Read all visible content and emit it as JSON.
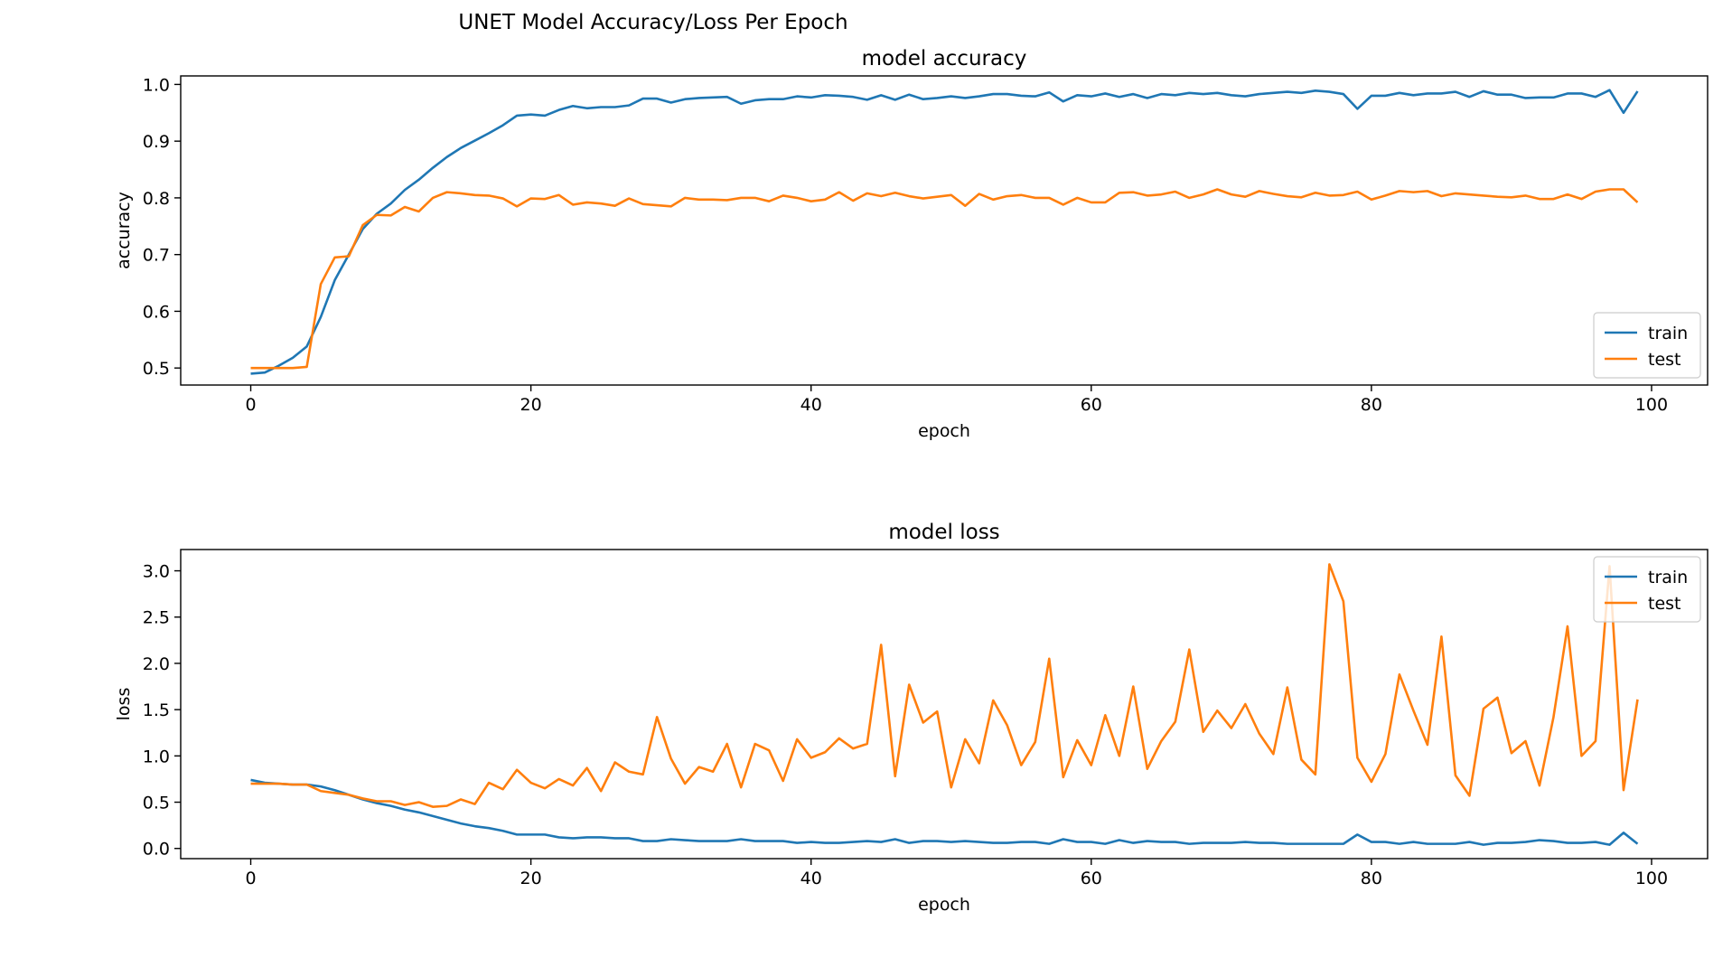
{
  "figure": {
    "suptitle": "UNET Model Accuracy/Loss Per Epoch"
  },
  "colors": {
    "train": "#1f77b4",
    "test": "#ff7f0e",
    "axes": "#000000",
    "background": "#ffffff"
  },
  "chart_data": [
    {
      "type": "line",
      "title": "model accuracy",
      "xlabel": "epoch",
      "ylabel": "accuracy",
      "xlim": [
        -5,
        104
      ],
      "ylim": [
        0.47,
        1.015
      ],
      "xticks": [
        0,
        20,
        40,
        60,
        80,
        100
      ],
      "yticks": [
        0.5,
        0.6,
        0.7,
        0.8,
        0.9,
        1.0
      ],
      "ytick_decimals": 1,
      "grid": false,
      "legend_position": "lower right",
      "x": [
        0,
        1,
        2,
        3,
        4,
        5,
        6,
        7,
        8,
        9,
        10,
        11,
        12,
        13,
        14,
        15,
        16,
        17,
        18,
        19,
        20,
        21,
        22,
        23,
        24,
        25,
        26,
        27,
        28,
        29,
        30,
        31,
        32,
        33,
        34,
        35,
        36,
        37,
        38,
        39,
        40,
        41,
        42,
        43,
        44,
        45,
        46,
        47,
        48,
        49,
        50,
        51,
        52,
        53,
        54,
        55,
        56,
        57,
        58,
        59,
        60,
        61,
        62,
        63,
        64,
        65,
        66,
        67,
        68,
        69,
        70,
        71,
        72,
        73,
        74,
        75,
        76,
        77,
        78,
        79,
        80,
        81,
        82,
        83,
        84,
        85,
        86,
        87,
        88,
        89,
        90,
        91,
        92,
        93,
        94,
        95,
        96,
        97,
        98,
        99
      ],
      "series": [
        {
          "name": "train",
          "color_key": "train",
          "values": [
            0.49,
            0.492,
            0.504,
            0.518,
            0.538,
            0.59,
            0.655,
            0.7,
            0.745,
            0.772,
            0.79,
            0.814,
            0.832,
            0.853,
            0.872,
            0.888,
            0.901,
            0.914,
            0.928,
            0.945,
            0.947,
            0.945,
            0.955,
            0.962,
            0.958,
            0.96,
            0.96,
            0.963,
            0.975,
            0.975,
            0.968,
            0.974,
            0.976,
            0.977,
            0.978,
            0.966,
            0.972,
            0.974,
            0.974,
            0.979,
            0.977,
            0.981,
            0.98,
            0.978,
            0.973,
            0.981,
            0.973,
            0.982,
            0.974,
            0.976,
            0.979,
            0.976,
            0.979,
            0.983,
            0.983,
            0.98,
            0.979,
            0.986,
            0.97,
            0.981,
            0.979,
            0.984,
            0.978,
            0.983,
            0.976,
            0.983,
            0.981,
            0.985,
            0.983,
            0.985,
            0.981,
            0.979,
            0.983,
            0.985,
            0.987,
            0.985,
            0.989,
            0.987,
            0.983,
            0.957,
            0.98,
            0.98,
            0.985,
            0.981,
            0.984,
            0.984,
            0.987,
            0.978,
            0.988,
            0.982,
            0.982,
            0.976,
            0.977,
            0.977,
            0.984,
            0.984,
            0.978,
            0.99,
            0.95,
            0.988
          ]
        },
        {
          "name": "test",
          "color_key": "test",
          "values": [
            0.5,
            0.5,
            0.5,
            0.5,
            0.502,
            0.648,
            0.695,
            0.697,
            0.752,
            0.77,
            0.769,
            0.784,
            0.776,
            0.8,
            0.81,
            0.808,
            0.805,
            0.804,
            0.799,
            0.785,
            0.799,
            0.798,
            0.805,
            0.788,
            0.792,
            0.79,
            0.786,
            0.799,
            0.789,
            0.787,
            0.785,
            0.8,
            0.797,
            0.797,
            0.796,
            0.8,
            0.8,
            0.794,
            0.804,
            0.8,
            0.794,
            0.797,
            0.81,
            0.795,
            0.808,
            0.803,
            0.809,
            0.803,
            0.799,
            0.802,
            0.805,
            0.786,
            0.807,
            0.797,
            0.803,
            0.805,
            0.8,
            0.8,
            0.788,
            0.8,
            0.792,
            0.792,
            0.809,
            0.81,
            0.804,
            0.806,
            0.811,
            0.8,
            0.806,
            0.815,
            0.806,
            0.802,
            0.812,
            0.807,
            0.803,
            0.801,
            0.809,
            0.804,
            0.805,
            0.811,
            0.797,
            0.804,
            0.812,
            0.81,
            0.812,
            0.803,
            0.808,
            0.806,
            0.804,
            0.802,
            0.801,
            0.804,
            0.798,
            0.798,
            0.806,
            0.798,
            0.811,
            0.815,
            0.815,
            0.792
          ]
        }
      ]
    },
    {
      "type": "line",
      "title": "model loss",
      "xlabel": "epoch",
      "ylabel": "loss",
      "xlim": [
        -5,
        104
      ],
      "ylim": [
        -0.11,
        3.23
      ],
      "xticks": [
        0,
        20,
        40,
        60,
        80,
        100
      ],
      "yticks": [
        0.0,
        0.5,
        1.0,
        1.5,
        2.0,
        2.5,
        3.0
      ],
      "ytick_decimals": 1,
      "grid": false,
      "legend_position": "upper right",
      "x": [
        0,
        1,
        2,
        3,
        4,
        5,
        6,
        7,
        8,
        9,
        10,
        11,
        12,
        13,
        14,
        15,
        16,
        17,
        18,
        19,
        20,
        21,
        22,
        23,
        24,
        25,
        26,
        27,
        28,
        29,
        30,
        31,
        32,
        33,
        34,
        35,
        36,
        37,
        38,
        39,
        40,
        41,
        42,
        43,
        44,
        45,
        46,
        47,
        48,
        49,
        50,
        51,
        52,
        53,
        54,
        55,
        56,
        57,
        58,
        59,
        60,
        61,
        62,
        63,
        64,
        65,
        66,
        67,
        68,
        69,
        70,
        71,
        72,
        73,
        74,
        75,
        76,
        77,
        78,
        79,
        80,
        81,
        82,
        83,
        84,
        85,
        86,
        87,
        88,
        89,
        90,
        91,
        92,
        93,
        94,
        95,
        96,
        97,
        98,
        99
      ],
      "series": [
        {
          "name": "train",
          "color_key": "train",
          "values": [
            0.74,
            0.71,
            0.7,
            0.69,
            0.69,
            0.67,
            0.63,
            0.58,
            0.53,
            0.49,
            0.46,
            0.42,
            0.39,
            0.35,
            0.31,
            0.27,
            0.24,
            0.22,
            0.19,
            0.15,
            0.15,
            0.15,
            0.12,
            0.11,
            0.12,
            0.12,
            0.11,
            0.11,
            0.08,
            0.08,
            0.1,
            0.09,
            0.08,
            0.08,
            0.08,
            0.1,
            0.08,
            0.08,
            0.08,
            0.06,
            0.07,
            0.06,
            0.06,
            0.07,
            0.08,
            0.07,
            0.1,
            0.06,
            0.08,
            0.08,
            0.07,
            0.08,
            0.07,
            0.06,
            0.06,
            0.07,
            0.07,
            0.05,
            0.1,
            0.07,
            0.07,
            0.05,
            0.09,
            0.06,
            0.08,
            0.07,
            0.07,
            0.05,
            0.06,
            0.06,
            0.06,
            0.07,
            0.06,
            0.06,
            0.05,
            0.05,
            0.05,
            0.05,
            0.05,
            0.15,
            0.07,
            0.07,
            0.05,
            0.07,
            0.05,
            0.05,
            0.05,
            0.07,
            0.04,
            0.06,
            0.06,
            0.07,
            0.09,
            0.08,
            0.06,
            0.06,
            0.07,
            0.04,
            0.17,
            0.05
          ]
        },
        {
          "name": "test",
          "color_key": "test",
          "values": [
            0.7,
            0.7,
            0.7,
            0.69,
            0.69,
            0.62,
            0.6,
            0.58,
            0.54,
            0.51,
            0.51,
            0.47,
            0.5,
            0.45,
            0.46,
            0.53,
            0.48,
            0.71,
            0.64,
            0.85,
            0.71,
            0.65,
            0.75,
            0.68,
            0.87,
            0.62,
            0.93,
            0.83,
            0.8,
            1.42,
            0.97,
            0.7,
            0.88,
            0.83,
            1.13,
            0.66,
            1.13,
            1.06,
            0.73,
            1.18,
            0.98,
            1.04,
            1.19,
            1.08,
            1.13,
            2.2,
            0.78,
            1.77,
            1.36,
            1.48,
            0.66,
            1.18,
            0.92,
            1.6,
            1.33,
            0.9,
            1.15,
            2.05,
            0.77,
            1.17,
            0.9,
            1.44,
            1.0,
            1.75,
            0.86,
            1.16,
            1.37,
            2.15,
            1.26,
            1.49,
            1.3,
            1.56,
            1.24,
            1.02,
            1.74,
            0.96,
            0.8,
            3.07,
            2.67,
            0.98,
            0.72,
            1.02,
            1.88,
            1.49,
            1.12,
            2.29,
            0.79,
            0.57,
            1.51,
            1.63,
            1.03,
            1.16,
            0.68,
            1.42,
            2.4,
            1.0,
            1.16,
            3.05,
            0.63,
            1.61
          ]
        }
      ]
    }
  ]
}
